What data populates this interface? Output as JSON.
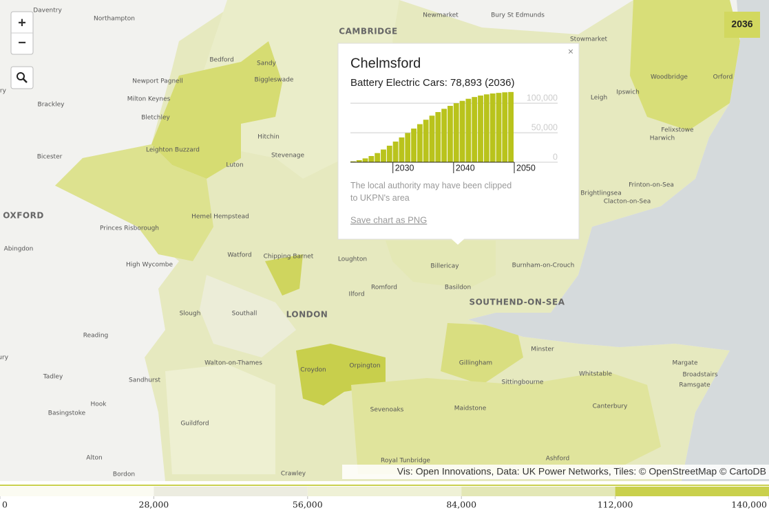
{
  "map": {
    "year_badge": "2036",
    "zoom_in": "+",
    "zoom_out": "−",
    "attribution": "Vis: Open Innovations, Data: UK Power Networks, Tiles: © OpenStreetMap © CartoDB",
    "labels": [
      "Daventry",
      "Northampton",
      "Newmarket",
      "Bury St Edmunds",
      "CAMBRIDGE",
      "Stowmarket",
      "Bedford",
      "Sandy",
      "Newport Pagnell",
      "Biggleswade",
      "Woodbridge",
      "Orford",
      "Ipswich",
      "Milton Keynes",
      "Brackley",
      "Bletchley",
      "Felixstowe",
      "Harwich",
      "Hitchin",
      "Leighton Buzzard",
      "Bicester",
      "Stevenage",
      "Luton",
      "Frinton-on-Sea",
      "Clacton-on-Sea",
      "Hemel Hempstead",
      "OXFORD",
      "Princes Risborough",
      "Abingdon",
      "Watford",
      "Chipping Barnet",
      "Loughton",
      "High Wycombe",
      "Billericay",
      "Burnham-on-Crouch",
      "Romford",
      "Basildon",
      "Ilford",
      "SOUTHEND-ON-SEA",
      "Slough",
      "Southall",
      "LONDON",
      "Reading",
      "Minster",
      "Walton-on-Thames",
      "Gillingham",
      "Margate",
      "Orpington",
      "Croydon",
      "Tadley",
      "Whitstable",
      "Broadstairs",
      "Sandhurst",
      "Sittingbourne",
      "Ramsgate",
      "Hook",
      "Canterbury",
      "Sevenoaks",
      "Maidstone",
      "Basingstoke",
      "Guildford",
      "Royal Tunbridge",
      "Alton",
      "Ashford",
      "Bordon",
      "Crawley",
      "Banbury",
      "Newbury",
      "Brightlingsea",
      "Leigh"
    ]
  },
  "popup": {
    "title": "Chelmsford",
    "subtitle": "Battery Electric Cars: 78,893 (2036)",
    "close": "×",
    "note": "The local authority may have been clipped to UKPN's area",
    "save_link": "Save chart as PNG",
    "chart_data": {
      "type": "bar",
      "x": [
        2023,
        2024,
        2025,
        2026,
        2027,
        2028,
        2029,
        2030,
        2031,
        2032,
        2033,
        2034,
        2035,
        2036,
        2037,
        2038,
        2039,
        2040,
        2041,
        2042,
        2043,
        2044,
        2045,
        2046,
        2047,
        2048,
        2049
      ],
      "values": [
        1500,
        3500,
        6500,
        10500,
        15500,
        21500,
        28000,
        35000,
        42000,
        49500,
        57000,
        64500,
        72000,
        78893,
        85000,
        90500,
        95500,
        100000,
        104000,
        107500,
        110500,
        113000,
        115000,
        116500,
        117500,
        118500,
        119000
      ],
      "color": "#b9c31c",
      "xlim": [
        2023,
        2050
      ],
      "xticks": [
        2030,
        2040,
        2050
      ],
      "ylim": [
        0,
        120000
      ],
      "yticks": [
        0,
        {
          "value": 50000,
          "label": "50,000"
        },
        {
          "value": 100000,
          "label": "100,000"
        }
      ],
      "grid": true
    }
  },
  "legend": {
    "ticks": [
      0,
      {
        "value": 28000,
        "label": "28,000"
      },
      {
        "value": 56000,
        "label": "56,000"
      },
      {
        "value": 84000,
        "label": "84,000"
      },
      {
        "value": 112000,
        "label": "112,000"
      },
      {
        "value": 140000,
        "label": "140,000"
      }
    ],
    "colors": [
      "#fbfbf2",
      "#ecece0",
      "#eff1d6",
      "#e3e7b6",
      "#c9d04c"
    ]
  }
}
